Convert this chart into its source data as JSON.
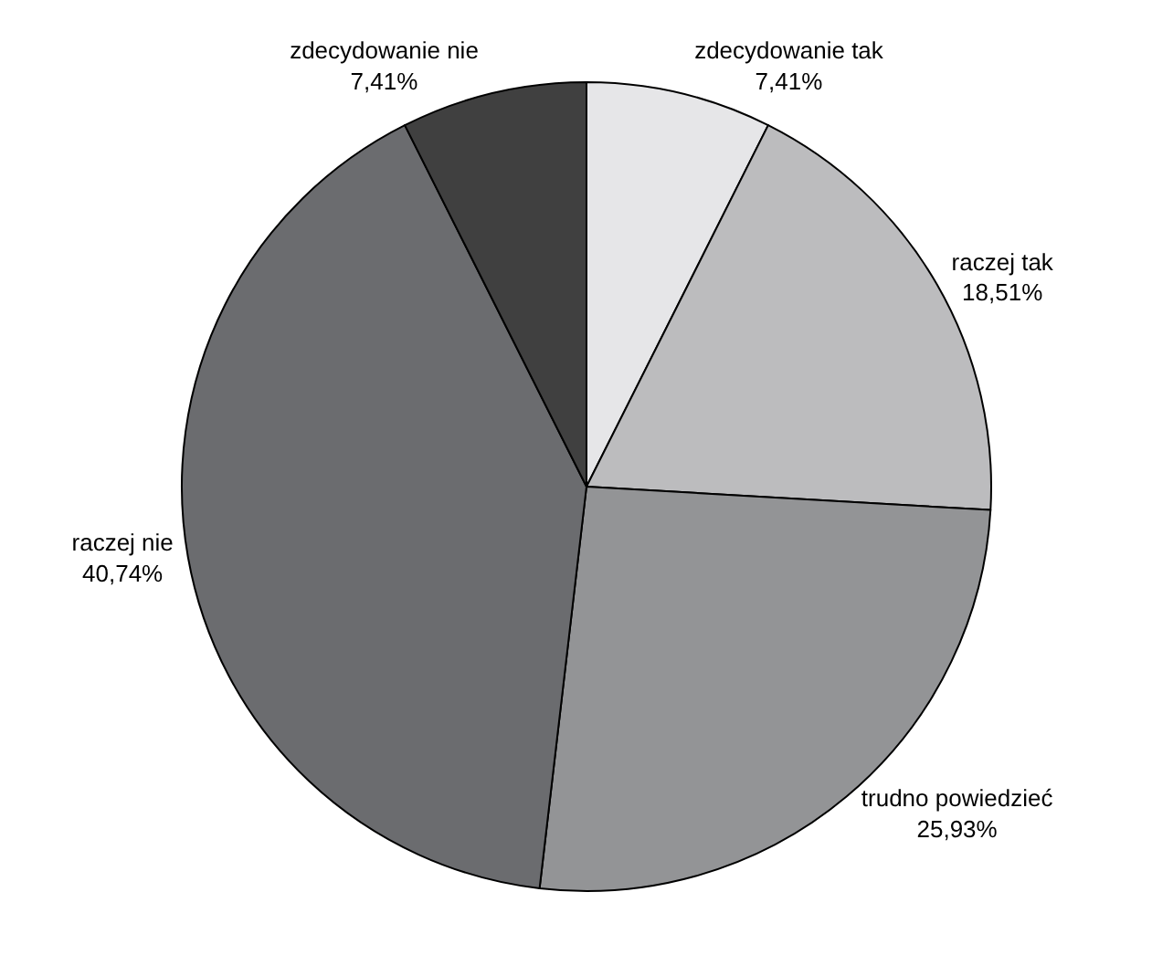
{
  "chart_data": {
    "type": "pie",
    "categories": [
      "zdecydowanie tak",
      "raczej tak",
      "trudno powiedzieć",
      "raczej nie",
      "zdecydowanie nie"
    ],
    "values": [
      7.41,
      18.51,
      25.93,
      40.74,
      7.41
    ],
    "value_labels": [
      "7,41%",
      "18,51%",
      "25,93%",
      "40,74%",
      "7,41%"
    ],
    "colors": [
      "#e6e6e8",
      "#bcbcbe",
      "#939496",
      "#6b6c6f",
      "#404040"
    ],
    "legend": false
  }
}
